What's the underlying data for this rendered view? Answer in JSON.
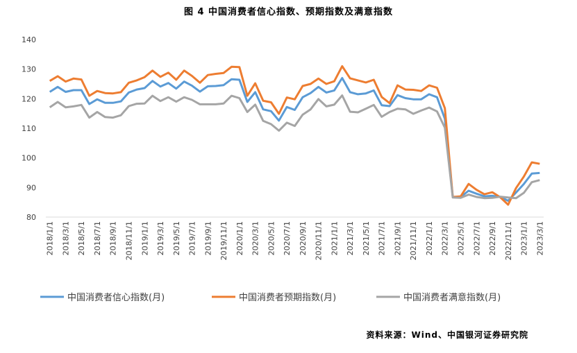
{
  "chart_data": {
    "type": "line",
    "title": "图 4  中国消费者信心指数、预期指数及满意指数",
    "source": "资料来源：Wind、中国银河证券研究院",
    "ylim": [
      80,
      140
    ],
    "yticks": [
      80,
      90,
      100,
      110,
      120,
      130,
      140
    ],
    "grid": false,
    "legend_position": "bottom",
    "x": [
      "2018/1/1",
      "2018/2/1",
      "2018/3/1",
      "2018/4/1",
      "2018/5/1",
      "2018/6/1",
      "2018/7/1",
      "2018/8/1",
      "2018/9/1",
      "2018/10/1",
      "2018/11/1",
      "2018/12/1",
      "2019/1/1",
      "2019/2/1",
      "2019/3/1",
      "2019/4/1",
      "2019/5/1",
      "2019/6/1",
      "2019/7/1",
      "2019/8/1",
      "2019/9/1",
      "2019/10/1",
      "2019/11/1",
      "2019/12/1",
      "2020/1/1",
      "2020/2/1",
      "2020/3/1",
      "2020/4/1",
      "2020/5/1",
      "2020/6/1",
      "2020/7/1",
      "2020/8/1",
      "2020/9/1",
      "2020/10/1",
      "2020/11/1",
      "2020/12/1",
      "2021/1/1",
      "2021/2/1",
      "2021/3/1",
      "2021/4/1",
      "2021/5/1",
      "2021/6/1",
      "2021/7/1",
      "2021/8/1",
      "2021/9/1",
      "2021/10/1",
      "2021/11/1",
      "2021/12/1",
      "2022/1/1",
      "2022/2/1",
      "2022/3/1",
      "2022/4/1",
      "2022/5/1",
      "2022/6/1",
      "2022/7/1",
      "2022/8/1",
      "2022/9/1",
      "2022/10/1",
      "2022/11/1",
      "2022/12/1",
      "2023/1/1",
      "2023/2/1",
      "2023/3/1"
    ],
    "x_tick_labels": [
      "2018/1/1",
      "2018/3/1",
      "2018/5/1",
      "2018/7/1",
      "2018/9/1",
      "2018/11/1",
      "2019/1/1",
      "2019/3/1",
      "2019/5/1",
      "2019/7/1",
      "2019/9/1",
      "2019/11/1",
      "2020/1/1",
      "2020/3/1",
      "2020/5/1",
      "2020/7/1",
      "2020/9/1",
      "2020/11/1",
      "2021/1/1",
      "2021/3/1",
      "2021/5/1",
      "2021/7/1",
      "2021/9/1",
      "2021/11/1",
      "2022/1/1",
      "2022/3/1",
      "2022/5/1",
      "2022/7/1",
      "2022/9/1",
      "2022/11/1",
      "2023/1/1",
      "2023/3/1"
    ],
    "series": [
      {
        "name": "中国消费者信心指数(月)",
        "color": "#5B9BD5",
        "values": [
          122.3,
          124.0,
          122.3,
          122.9,
          122.9,
          118.2,
          119.8,
          118.6,
          118.6,
          119.1,
          122.1,
          123.1,
          123.6,
          126.0,
          124.1,
          125.3,
          123.4,
          125.8,
          124.4,
          122.4,
          124.2,
          124.3,
          124.6,
          126.6,
          126.4,
          118.9,
          122.2,
          116.4,
          115.8,
          112.6,
          117.2,
          116.2,
          120.5,
          121.9,
          124.0,
          122.1,
          122.8,
          127.0,
          122.2,
          121.5,
          121.8,
          122.8,
          117.8,
          117.5,
          121.2,
          120.2,
          119.8,
          119.8,
          121.5,
          120.5,
          113.2,
          86.7,
          86.8,
          88.9,
          87.9,
          87.0,
          87.2,
          86.8,
          85.5,
          88.3,
          91.2,
          94.7,
          94.9
        ]
      },
      {
        "name": "中国消费者预期指数(月)",
        "color": "#ED7D31",
        "values": [
          126.0,
          127.6,
          125.8,
          126.8,
          126.5,
          121.0,
          122.6,
          121.9,
          121.8,
          122.2,
          125.4,
          126.2,
          127.3,
          129.5,
          127.4,
          128.8,
          126.4,
          129.5,
          127.7,
          125.4,
          128.0,
          128.4,
          128.7,
          130.8,
          130.7,
          121.0,
          125.2,
          119.3,
          118.8,
          114.9,
          120.4,
          119.8,
          124.3,
          125.0,
          126.8,
          125.0,
          125.9,
          131.0,
          126.9,
          126.2,
          125.5,
          126.4,
          120.6,
          118.5,
          124.5,
          123.1,
          123.0,
          122.6,
          124.5,
          123.7,
          116.8,
          86.8,
          87.0,
          91.2,
          89.2,
          87.7,
          88.4,
          86.7,
          84.2,
          89.8,
          93.7,
          98.5,
          98.0
        ]
      },
      {
        "name": "中国消费者满意指数(月)",
        "color": "#A5A5A5",
        "values": [
          117.1,
          118.9,
          117.1,
          117.4,
          117.9,
          113.6,
          115.5,
          113.8,
          113.6,
          114.4,
          117.5,
          118.3,
          118.4,
          121.0,
          119.2,
          120.5,
          119.0,
          120.5,
          119.6,
          118.1,
          118.1,
          118.1,
          118.4,
          121.0,
          120.2,
          115.5,
          118.0,
          112.5,
          111.4,
          109.2,
          111.9,
          110.8,
          114.6,
          116.4,
          119.9,
          117.4,
          118.0,
          121.1,
          115.6,
          115.4,
          116.6,
          117.9,
          113.9,
          115.5,
          116.6,
          116.4,
          114.9,
          116.0,
          117.0,
          115.7,
          110.2,
          86.6,
          86.5,
          87.6,
          86.8,
          86.4,
          86.5,
          86.9,
          86.6,
          86.4,
          88.2,
          91.8,
          92.5
        ]
      }
    ]
  }
}
